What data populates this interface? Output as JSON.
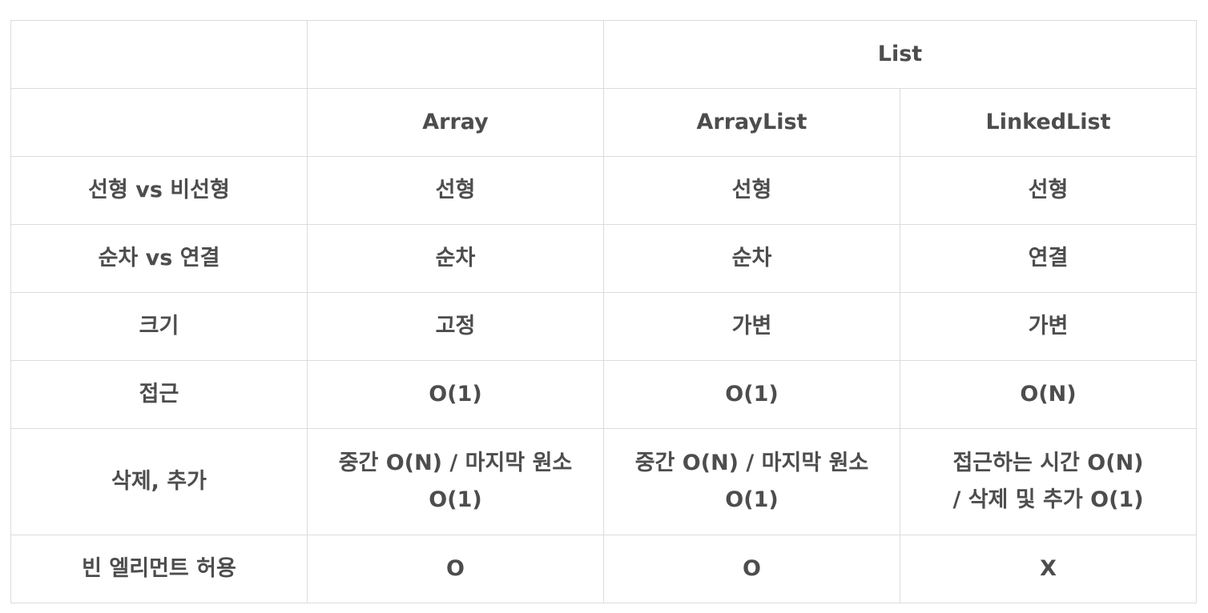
{
  "table": {
    "header_group": "List",
    "columns": [
      "Array",
      "ArrayList",
      "LinkedList"
    ],
    "rows": [
      {
        "label": "선형 vs 비선형",
        "array": "선형",
        "arraylist": "선형",
        "linkedlist": "선형"
      },
      {
        "label": "순차 vs 연결",
        "array": "순차",
        "arraylist": "순차",
        "linkedlist": "연결"
      },
      {
        "label": "크기",
        "array": "고정",
        "arraylist": "가변",
        "linkedlist": "가변"
      },
      {
        "label": "접근",
        "array": "O(1)",
        "arraylist": "O(1)",
        "linkedlist": "O(N)"
      },
      {
        "label": "삭제, 추가",
        "array": [
          "중간 O(N) / 마지막 원소",
          "O(1)"
        ],
        "arraylist": [
          "중간 O(N) / 마지막 원소",
          "O(1)"
        ],
        "linkedlist": [
          "접근하는 시간 O(N)",
          "/ 삭제 및 추가 O(1)"
        ]
      },
      {
        "label": "빈 엘리먼트 허용",
        "array": "O",
        "arraylist": "O",
        "linkedlist": "X"
      }
    ]
  }
}
